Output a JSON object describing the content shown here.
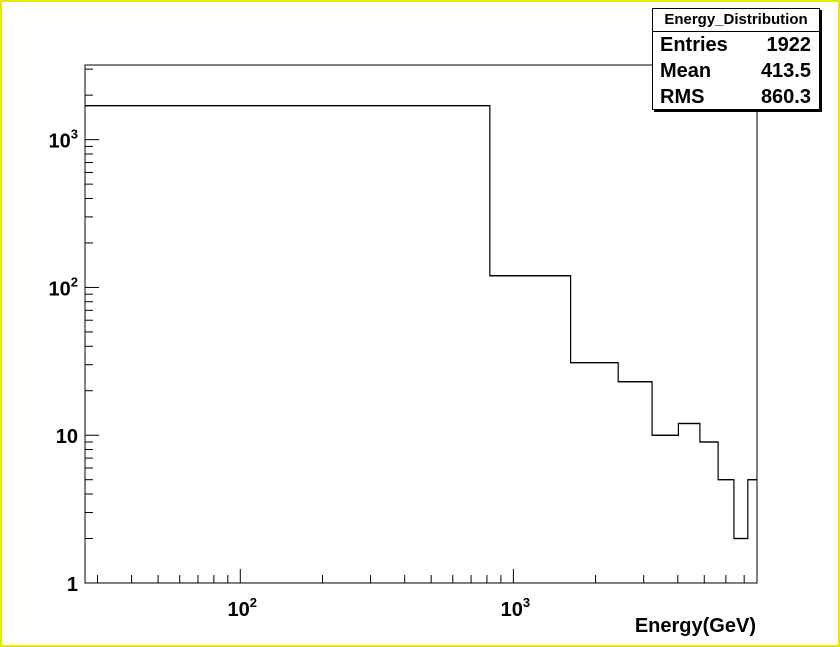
{
  "stats": {
    "title": "Energy_Distribution",
    "rows": [
      {
        "label": "Entries",
        "value": "1922"
      },
      {
        "label": "Mean",
        "value": "413.5"
      },
      {
        "label": "RMS",
        "value": "860.3"
      }
    ]
  },
  "chart_data": {
    "type": "bar",
    "histogram": true,
    "xlabel": "Energy(GeV)",
    "ylabel": "",
    "title": "",
    "xscale": "log",
    "yscale": "log",
    "xlim": [
      27,
      7800
    ],
    "ylim": [
      1,
      3200
    ],
    "x_tick_labels": [
      {
        "value": 100,
        "base": "10",
        "exp": "2"
      },
      {
        "value": 1000,
        "base": "10",
        "exp": "3"
      }
    ],
    "y_tick_labels": [
      {
        "value": 1,
        "base": "1",
        "exp": ""
      },
      {
        "value": 10,
        "base": "10",
        "exp": ""
      },
      {
        "value": 100,
        "base": "10",
        "exp": "2"
      },
      {
        "value": 1000,
        "base": "10",
        "exp": "3"
      }
    ],
    "bins": [
      {
        "x_low": 27,
        "x_high": 820,
        "count": 1700
      },
      {
        "x_low": 820,
        "x_high": 1620,
        "count": 120
      },
      {
        "x_low": 1620,
        "x_high": 2420,
        "count": 31
      },
      {
        "x_low": 2420,
        "x_high": 3220,
        "count": 23
      },
      {
        "x_low": 3220,
        "x_high": 4020,
        "count": 10
      },
      {
        "x_low": 4020,
        "x_high": 4820,
        "count": 12
      },
      {
        "x_low": 4820,
        "x_high": 5620,
        "count": 9
      },
      {
        "x_low": 5620,
        "x_high": 6420,
        "count": 5
      },
      {
        "x_low": 6420,
        "x_high": 7220,
        "count": 2
      },
      {
        "x_low": 7220,
        "x_high": 7800,
        "count": 5
      }
    ],
    "grid": false,
    "legend": "top-right",
    "colors": {
      "frame": "#e8e800",
      "line": "#000000",
      "background": "#ffffff"
    }
  }
}
